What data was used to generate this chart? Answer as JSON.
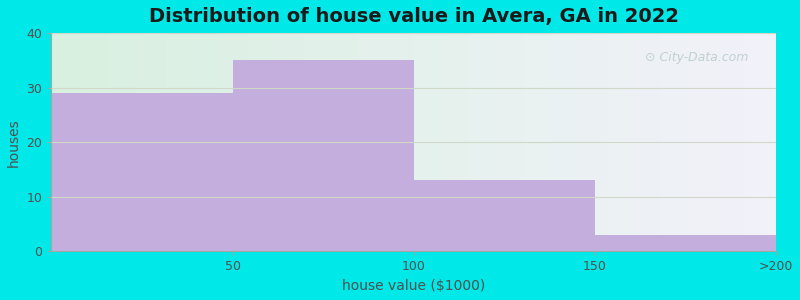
{
  "title": "Distribution of house value in Avera, GA in 2022",
  "xlabel": "house value ($1000)",
  "ylabel": "houses",
  "categories": [
    "50",
    "100",
    "150",
    ">200"
  ],
  "values": [
    29,
    35,
    13,
    3
  ],
  "bar_color": "#c4aedd",
  "ylim": [
    0,
    40
  ],
  "yticks": [
    0,
    10,
    20,
    30,
    40
  ],
  "xlim": [
    0,
    4
  ],
  "bg_outer": "#00e8e8",
  "bg_left": "#d8f0e0",
  "bg_right": "#f0f0f8",
  "grid_color": "#d0d8c8",
  "title_fontsize": 14,
  "axis_fontsize": 10,
  "tick_fontsize": 9,
  "title_color": "#1a1a1a",
  "label_color": "#505050",
  "watermark_text": "City-Data.com",
  "watermark_color": "#b8ccc8"
}
